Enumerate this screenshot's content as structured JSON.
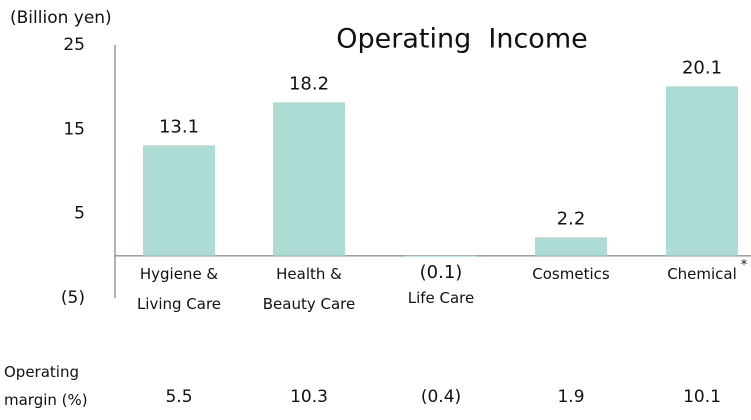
{
  "chart_data": {
    "type": "bar",
    "title": "Operating  Income",
    "unit_label": "(Billion yen)",
    "categories": [
      "Hygiene & Living Care",
      "Health & Beauty Care",
      "Life Care",
      "Cosmetics",
      "Chemical"
    ],
    "footnote_mark": "*",
    "values": [
      13.1,
      18.2,
      -0.1,
      2.2,
      20.1
    ],
    "value_labels": [
      "13.1",
      "18.2",
      "(0.1)",
      "2.2",
      "20.1"
    ],
    "color": "#acdcd3",
    "ylim": [
      -5,
      25
    ],
    "yticks": [
      25,
      15,
      5,
      {
        "value": -5,
        "label": "(5)"
      }
    ],
    "grid": false,
    "operating_margin": {
      "label": "Operating margin (%)",
      "values": [
        5.5,
        10.3,
        -0.4,
        1.9,
        10.1
      ],
      "value_labels": [
        "5.5",
        "10.3",
        "(0.4)",
        "1.9",
        "10.1"
      ]
    }
  }
}
